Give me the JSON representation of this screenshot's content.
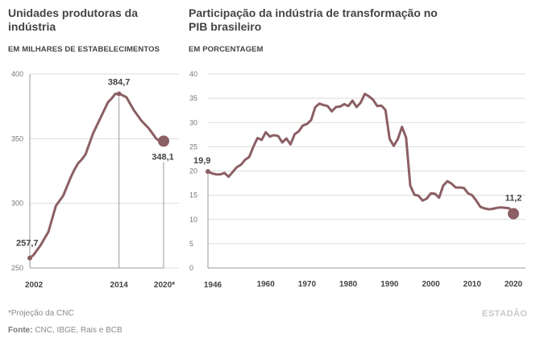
{
  "chart_data": [
    {
      "type": "line",
      "title": "Unidades produtoras da indústria",
      "subtitle": "EM MILHARES DE ESTABELECIMENTOS",
      "xlim": [
        2002,
        2020
      ],
      "ylim": [
        250,
        400
      ],
      "yticks": [
        "250",
        "300",
        "350",
        "400"
      ],
      "xticks": [
        "2002",
        "2014",
        "2020*"
      ],
      "grid": "horizontal",
      "color": "#8b5f63",
      "x": [
        2002,
        2002.5,
        2003,
        2003.5,
        2004,
        2004.5,
        2005,
        2005.5,
        2006,
        2006.5,
        2007,
        2007.5,
        2008,
        2008.5,
        2009,
        2009.5,
        2010,
        2010.5,
        2011,
        2011.5,
        2012,
        2012.5,
        2013,
        2013.5,
        2014,
        2014.5,
        2015,
        2015.5,
        2016,
        2016.5,
        2017,
        2017.5,
        2018,
        2018.5,
        2019,
        2019.5,
        2020
      ],
      "y": [
        257.7,
        260,
        264,
        268,
        273,
        278,
        288,
        298,
        302,
        306,
        313,
        320,
        326,
        331,
        334,
        338,
        346,
        354,
        360,
        366,
        372,
        378,
        381,
        384.7,
        384.7,
        383.5,
        382,
        377,
        372,
        368,
        364,
        361,
        358,
        354,
        350,
        348.1,
        348.1
      ],
      "labels": {
        "start": "257,7",
        "peak": "384,7",
        "end": "348,1"
      }
    },
    {
      "type": "line",
      "title": "Participação da indústria de transformação no PIB brasileiro",
      "subtitle": "EM PORCENTAGEM",
      "xlim": [
        1946,
        2020
      ],
      "ylim": [
        0,
        40
      ],
      "yticks": [
        "0",
        "5",
        "10",
        "15",
        "20",
        "25",
        "30",
        "35",
        "40"
      ],
      "xticks": [
        "1946",
        "1960",
        "1970",
        "1980",
        "1990",
        "2000",
        "2010",
        "2020"
      ],
      "grid": "horizontal",
      "color": "#8b5f63",
      "x": [
        1946,
        1947,
        1948,
        1949,
        1950,
        1951,
        1952,
        1953,
        1954,
        1955,
        1956,
        1957,
        1958,
        1959,
        1960,
        1961,
        1962,
        1963,
        1964,
        1965,
        1966,
        1967,
        1968,
        1969,
        1970,
        1971,
        1972,
        1973,
        1974,
        1975,
        1976,
        1977,
        1978,
        1979,
        1980,
        1981,
        1982,
        1983,
        1984,
        1985,
        1986,
        1987,
        1988,
        1989,
        1990,
        1991,
        1992,
        1993,
        1994,
        1995,
        1996,
        1997,
        1998,
        1999,
        2000,
        2001,
        2002,
        2003,
        2004,
        2005,
        2006,
        2007,
        2008,
        2009,
        2010,
        2011,
        2012,
        2013,
        2014,
        2015,
        2016,
        2017,
        2018,
        2019,
        2020
      ],
      "y": [
        19.9,
        19.5,
        19.3,
        19.3,
        19.6,
        18.8,
        19.8,
        20.8,
        21.3,
        22.3,
        22.9,
        25,
        26.8,
        26.4,
        28,
        27.1,
        27.4,
        27.2,
        25.9,
        26.7,
        25.5,
        27.6,
        28.2,
        29.4,
        29.7,
        30.5,
        33.2,
        33.9,
        33.6,
        33.4,
        32.3,
        33.2,
        33.3,
        33.8,
        33.4,
        34.5,
        33.2,
        34.1,
        35.9,
        35.4,
        34.7,
        33.4,
        33.5,
        32.6,
        26.6,
        25.2,
        26.6,
        29.1,
        26.9,
        17,
        15.1,
        14.9,
        13.9,
        14.3,
        15.4,
        15.3,
        14.5,
        17,
        17.9,
        17.4,
        16.6,
        16.6,
        16.5,
        15.4,
        15,
        13.9,
        12.6,
        12.3,
        12.1,
        12.2,
        12.4,
        12.5,
        12.4,
        12.3,
        11.2
      ],
      "labels": {
        "start": "19,9",
        "end": "11,2"
      }
    }
  ],
  "footer": {
    "note": "*Projeção da CNC",
    "source_label": "Fonte:",
    "source_text": "CNC, IBGE, Rais e BCB"
  },
  "logo_text": "ESTADÃO"
}
